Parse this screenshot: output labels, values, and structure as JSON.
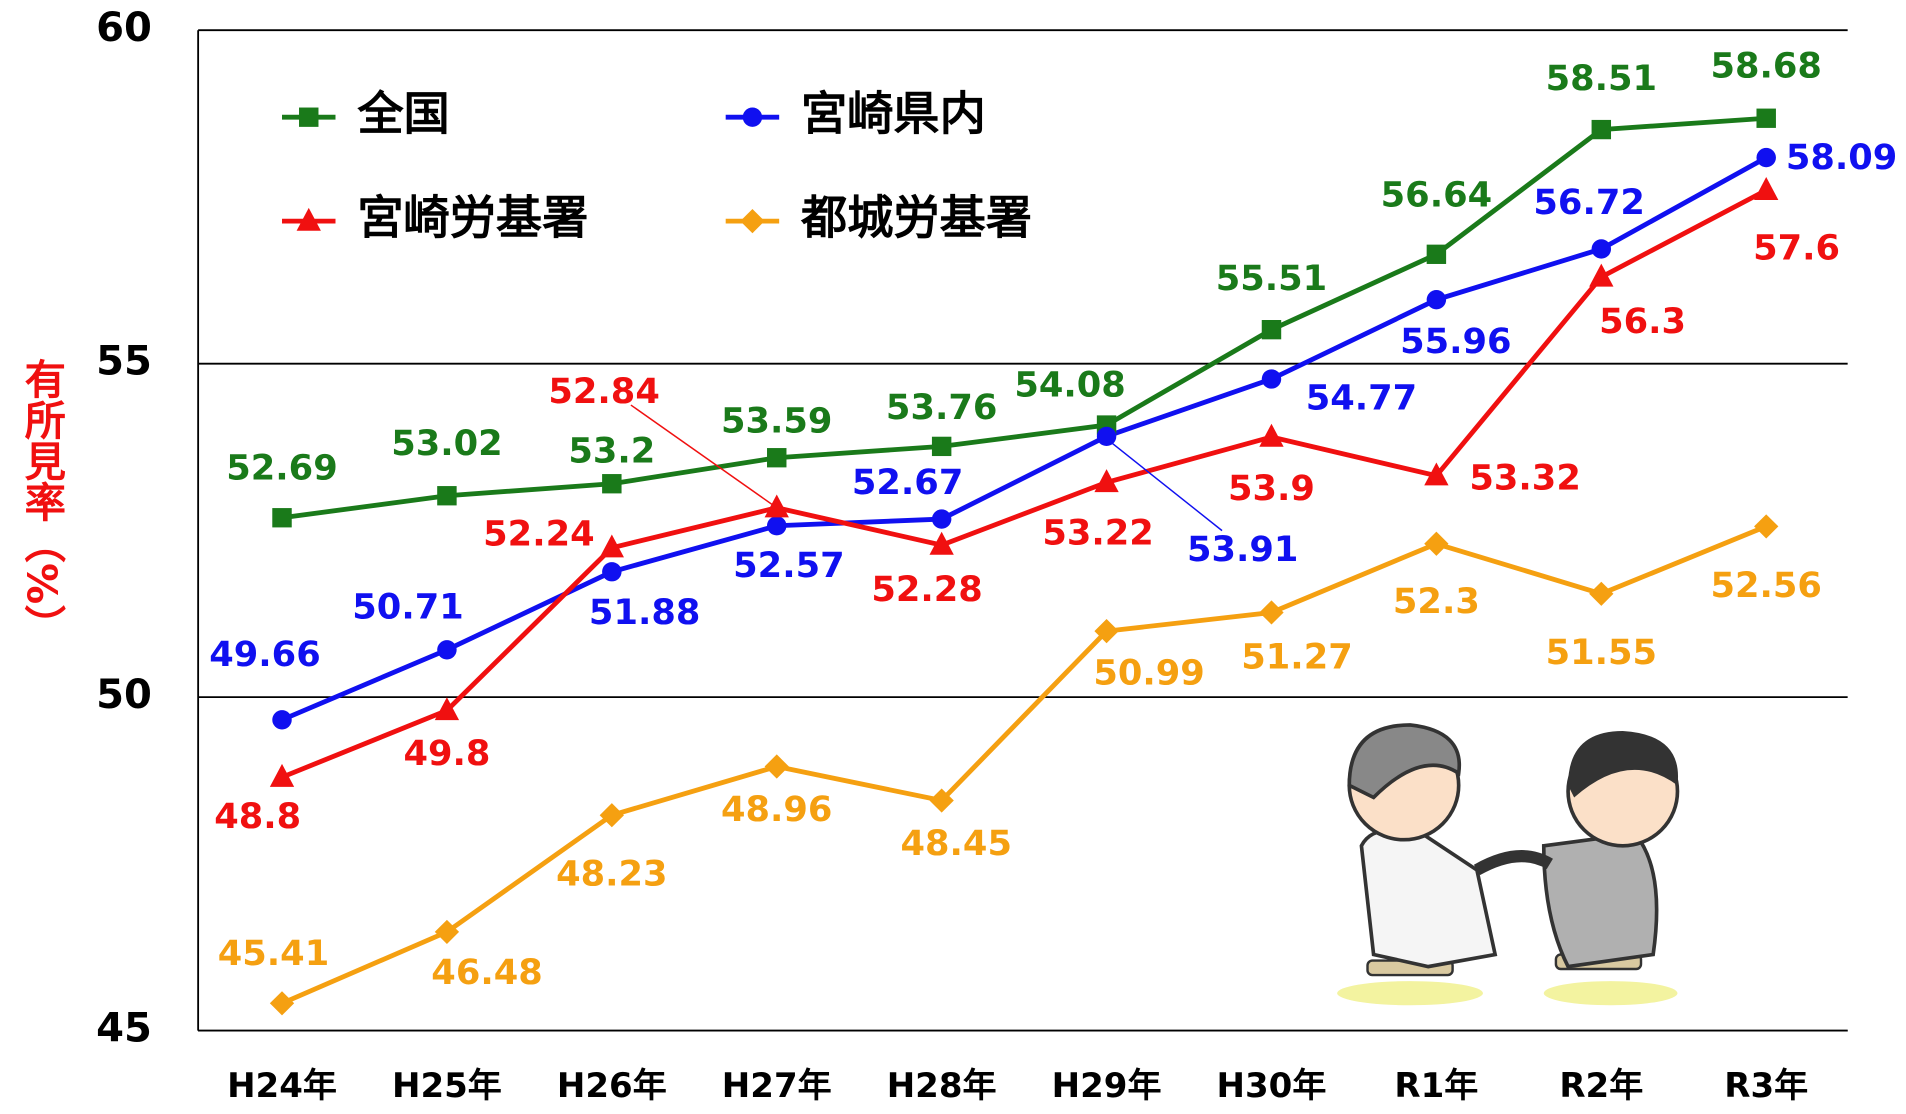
{
  "chart_data": {
    "type": "line",
    "y_label": "有所見率（%）",
    "categories": [
      "H24年",
      "H25年",
      "H26年",
      "H27年",
      "H28年",
      "H29年",
      "H30年",
      "R1年",
      "R2年",
      "R3年"
    ],
    "series": [
      {
        "name": "全国",
        "color": "#1a7a1a",
        "marker": "square",
        "values": [
          52.69,
          53.02,
          53.2,
          53.59,
          53.76,
          54.08,
          55.51,
          56.64,
          58.51,
          58.68
        ]
      },
      {
        "name": "宮崎県内",
        "color": "#1010f0",
        "marker": "circle",
        "values": [
          49.66,
          50.71,
          51.88,
          52.57,
          52.67,
          53.91,
          54.77,
          55.96,
          56.72,
          58.09
        ]
      },
      {
        "name": "宮崎労基署",
        "color": "#f01010",
        "marker": "triangle",
        "values": [
          48.8,
          49.8,
          52.24,
          52.84,
          52.28,
          53.22,
          53.9,
          53.32,
          56.3,
          57.6
        ]
      },
      {
        "name": "都城労基署",
        "color": "#f5a011",
        "marker": "diamond",
        "values": [
          45.41,
          46.48,
          48.23,
          48.96,
          48.45,
          50.99,
          51.27,
          52.3,
          51.55,
          52.56
        ]
      }
    ],
    "ylim": [
      45,
      60
    ],
    "yticks": [
      45,
      50,
      55,
      60
    ],
    "grid": true
  }
}
